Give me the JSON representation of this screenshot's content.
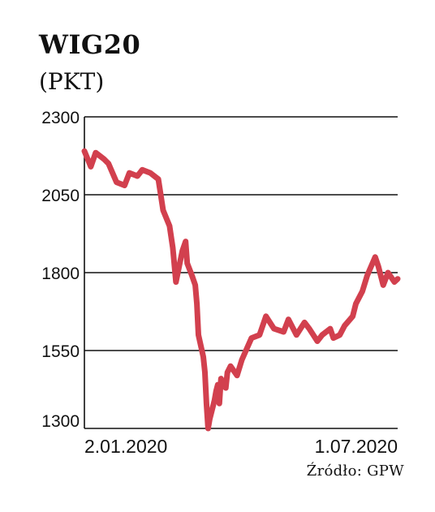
{
  "chart_data": {
    "type": "line",
    "title": "WIG20",
    "subtitle": "(PKT)",
    "source_note": "Źródło: GPW",
    "ylim": [
      1300,
      2300
    ],
    "yticks": [
      1300,
      1550,
      1800,
      2050,
      2300
    ],
    "grid": "horizontal",
    "x_tick_labels": [
      "2.01.2020",
      "1.07.2020"
    ],
    "line_color": "#d2404e",
    "series": [
      {
        "x": [
          "2020-01-02",
          "2020-01-06",
          "2020-01-09",
          "2020-01-14",
          "2020-01-17",
          "2020-01-22",
          "2020-01-27",
          "2020-01-30",
          "2020-02-04",
          "2020-02-07",
          "2020-02-12",
          "2020-02-17",
          "2020-02-20",
          "2020-02-24",
          "2020-02-26",
          "2020-02-28",
          "2020-03-03",
          "2020-03-05",
          "2020-03-06",
          "2020-03-09",
          "2020-03-11",
          "2020-03-12",
          "2020-03-13",
          "2020-03-16",
          "2020-03-17",
          "2020-03-18",
          "2020-03-19",
          "2020-03-20",
          "2020-03-23",
          "2020-03-24",
          "2020-03-25",
          "2020-03-26",
          "2020-03-27",
          "2020-03-30",
          "2020-03-31",
          "2020-04-02",
          "2020-04-06",
          "2020-04-09",
          "2020-04-15",
          "2020-04-20",
          "2020-04-24",
          "2020-04-29",
          "2020-05-05",
          "2020-05-08",
          "2020-05-13",
          "2020-05-18",
          "2020-05-21",
          "2020-05-26",
          "2020-05-29",
          "2020-06-03",
          "2020-06-05",
          "2020-06-09",
          "2020-06-12",
          "2020-06-17",
          "2020-06-19",
          "2020-06-23",
          "2020-06-26",
          "2020-07-01",
          "2020-07-03",
          "2020-07-06",
          "2020-07-09",
          "2020-07-13",
          "2020-07-15"
        ],
        "values": [
          2190,
          2140,
          2185,
          2165,
          2150,
          2090,
          2080,
          2120,
          2110,
          2130,
          2120,
          2100,
          2000,
          1950,
          1880,
          1770,
          1870,
          1900,
          1830,
          1790,
          1760,
          1700,
          1600,
          1530,
          1480,
          1380,
          1300,
          1330,
          1390,
          1420,
          1440,
          1380,
          1460,
          1430,
          1480,
          1500,
          1470,
          1520,
          1590,
          1600,
          1660,
          1620,
          1610,
          1650,
          1600,
          1640,
          1620,
          1580,
          1600,
          1620,
          1590,
          1600,
          1630,
          1660,
          1700,
          1740,
          1790,
          1850,
          1820,
          1760,
          1800,
          1770,
          1780
        ]
      }
    ]
  }
}
